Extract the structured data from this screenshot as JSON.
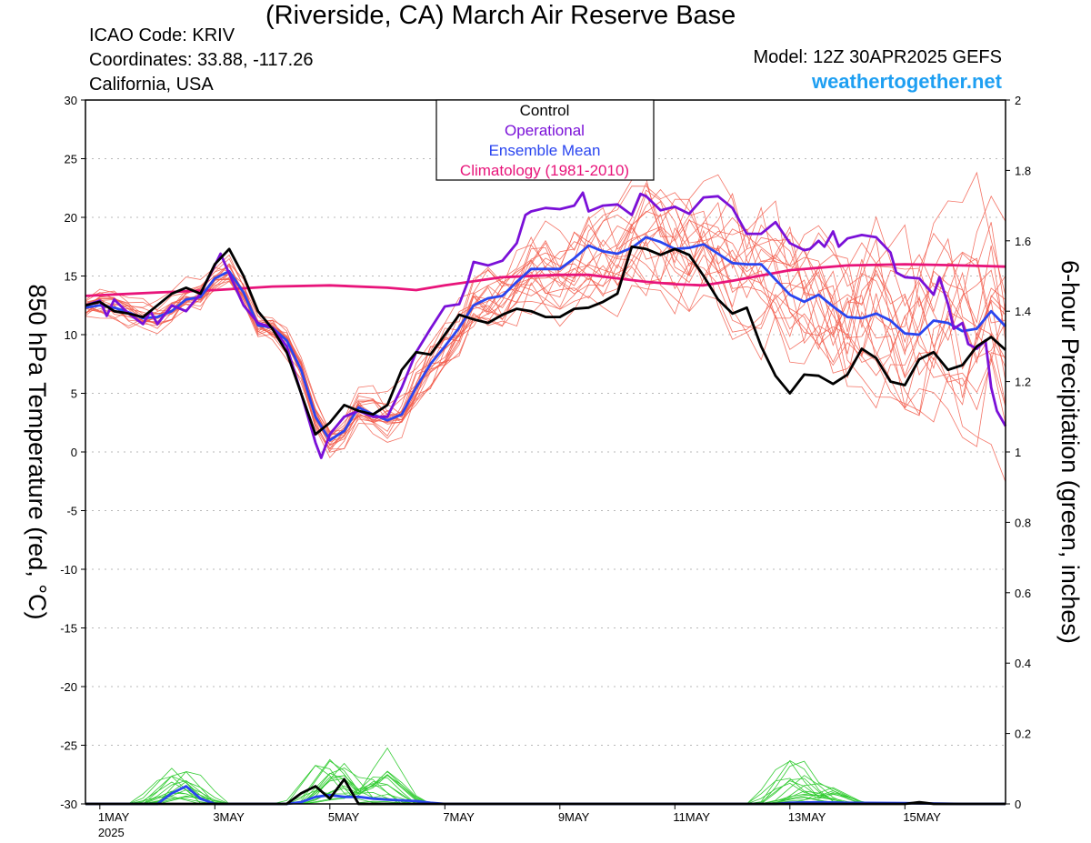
{
  "header": {
    "title": "(Riverside, CA) March Air Reserve Base",
    "icao": "ICAO Code: KRIV",
    "coords": "Coordinates: 33.88, -117.26",
    "region": "California, USA",
    "model": "Model: 12Z 30APR2025 GEFS",
    "site": "weathertogether.net"
  },
  "colors": {
    "control": "#000000",
    "operational": "#7a10d8",
    "mean": "#2a45f0",
    "climatology": "#e8147a",
    "members_temp": "#f25a4a",
    "members_precip": "#33cc33",
    "site": "#1e9ff2",
    "grid": "#b8b8b8"
  },
  "chart_data": {
    "type": "line",
    "ylabel": "850 hPa Temperature (red, °C)",
    "y2label": "6-hour Precipitation (green, inches)",
    "ylim": [
      -30,
      30
    ],
    "y2lim": [
      0,
      2
    ],
    "yticks": [
      "30",
      "25",
      "20",
      "15",
      "10",
      "5",
      "0",
      "-5",
      "-10",
      "-15",
      "-20",
      "-25",
      "-30"
    ],
    "y2ticks": [
      "2",
      "1.8",
      "1.6",
      "1.4",
      "1.2",
      "1",
      "0.8",
      "0.6",
      "0.4",
      "0.2",
      "0"
    ],
    "x_unit": "days since 1MAY2025 00Z",
    "xlim": [
      -0.25,
      15.75
    ],
    "xticks": [
      {
        "x": 0,
        "label": "1MAY"
      },
      {
        "x": 2,
        "label": "3MAY"
      },
      {
        "x": 4,
        "label": "5MAY"
      },
      {
        "x": 6,
        "label": "7MAY"
      },
      {
        "x": 8,
        "label": "9MAY"
      },
      {
        "x": 10,
        "label": "11MAY"
      },
      {
        "x": 12,
        "label": "13MAY"
      },
      {
        "x": 14,
        "label": "15MAY"
      }
    ],
    "year_label": "2025",
    "grid": true,
    "legend": {
      "position": "top-center",
      "entries": [
        {
          "label": "Control",
          "color": "#000000"
        },
        {
          "label": "Operational",
          "color": "#7a10d8"
        },
        {
          "label": "Ensemble Mean",
          "color": "#2a45f0"
        },
        {
          "label": "Climatology (1981-2010)",
          "color": "#e8147a"
        }
      ]
    },
    "series": [
      {
        "name": "Climatology (1981-2010)",
        "axis": "temp",
        "points": [
          [
            -0.25,
            13.3
          ],
          [
            1,
            13.6
          ],
          [
            2,
            13.8
          ],
          [
            3,
            14.1
          ],
          [
            4,
            14.2
          ],
          [
            5,
            14.0
          ],
          [
            5.5,
            13.8
          ],
          [
            6,
            14.2
          ],
          [
            7,
            14.9
          ],
          [
            8,
            15.1
          ],
          [
            8.5,
            15.1
          ],
          [
            9,
            14.8
          ],
          [
            9.5,
            14.5
          ],
          [
            10,
            14.3
          ],
          [
            10.5,
            14.2
          ],
          [
            11,
            14.6
          ],
          [
            12,
            15.5
          ],
          [
            13,
            15.9
          ],
          [
            14,
            16.0
          ],
          [
            15,
            15.9
          ],
          [
            15.75,
            15.8
          ]
        ]
      },
      {
        "name": "Ensemble Mean",
        "axis": "temp",
        "points": [
          [
            -0.25,
            12.3
          ],
          [
            0,
            12.5
          ],
          [
            0.25,
            12.3
          ],
          [
            0.5,
            11.9
          ],
          [
            0.75,
            11.4
          ],
          [
            1,
            11.5
          ],
          [
            1.25,
            12.0
          ],
          [
            1.5,
            13.0
          ],
          [
            1.75,
            13.2
          ],
          [
            2,
            14.8
          ],
          [
            2.25,
            15.4
          ],
          [
            2.5,
            13.6
          ],
          [
            2.75,
            10.8
          ],
          [
            3,
            10.6
          ],
          [
            3.25,
            9.5
          ],
          [
            3.5,
            7.0
          ],
          [
            3.75,
            3.0
          ],
          [
            4.0,
            1.0
          ],
          [
            4.25,
            1.8
          ],
          [
            4.5,
            3.8
          ],
          [
            4.75,
            3.2
          ],
          [
            5.0,
            2.7
          ],
          [
            5.25,
            3.2
          ],
          [
            5.5,
            5.5
          ],
          [
            5.75,
            7.5
          ],
          [
            6,
            9.0
          ],
          [
            6.25,
            10.6
          ],
          [
            6.5,
            12.5
          ],
          [
            6.75,
            13.1
          ],
          [
            7,
            13.3
          ],
          [
            7.25,
            14.5
          ],
          [
            7.5,
            15.6
          ],
          [
            7.75,
            15.6
          ],
          [
            8,
            15.6
          ],
          [
            8.25,
            16.5
          ],
          [
            8.5,
            17.6
          ],
          [
            8.75,
            17.1
          ],
          [
            9,
            16.9
          ],
          [
            9.25,
            17.4
          ],
          [
            9.5,
            18.3
          ],
          [
            9.75,
            17.9
          ],
          [
            10,
            17.3
          ],
          [
            10.25,
            17.4
          ],
          [
            10.5,
            17.7
          ],
          [
            10.75,
            16.9
          ],
          [
            11,
            16.1
          ],
          [
            11.25,
            16.0
          ],
          [
            11.5,
            16.0
          ],
          [
            11.75,
            14.7
          ],
          [
            12,
            13.4
          ],
          [
            12.25,
            12.8
          ],
          [
            12.5,
            13.4
          ],
          [
            12.75,
            12.4
          ],
          [
            13,
            11.5
          ],
          [
            13.25,
            11.4
          ],
          [
            13.5,
            11.8
          ],
          [
            13.75,
            11.2
          ],
          [
            14,
            10.1
          ],
          [
            14.25,
            10.0
          ],
          [
            14.5,
            11.2
          ],
          [
            14.75,
            11.0
          ],
          [
            15,
            10.3
          ],
          [
            15.25,
            10.5
          ],
          [
            15.5,
            12.0
          ],
          [
            15.75,
            10.7
          ]
        ]
      },
      {
        "name": "Operational",
        "axis": "temp",
        "points": [
          [
            -0.25,
            12.5
          ],
          [
            0,
            12.9
          ],
          [
            0.12,
            11.6
          ],
          [
            0.25,
            13.0
          ],
          [
            0.5,
            11.8
          ],
          [
            0.75,
            10.9
          ],
          [
            0.88,
            12.0
          ],
          [
            1,
            10.9
          ],
          [
            1.25,
            12.5
          ],
          [
            1.5,
            12.0
          ],
          [
            1.75,
            13.5
          ],
          [
            2,
            15.9
          ],
          [
            2.1,
            16.9
          ],
          [
            2.25,
            15.2
          ],
          [
            2.5,
            12.5
          ],
          [
            2.75,
            11.0
          ],
          [
            3,
            10.6
          ],
          [
            3.25,
            9.0
          ],
          [
            3.5,
            5.0
          ],
          [
            3.75,
            0.8
          ],
          [
            3.85,
            -0.5
          ],
          [
            4.0,
            1.5
          ],
          [
            4.25,
            3.0
          ],
          [
            4.5,
            3.5
          ],
          [
            4.75,
            3.0
          ],
          [
            5.0,
            3.0
          ],
          [
            5.25,
            5.5
          ],
          [
            5.5,
            8.5
          ],
          [
            5.75,
            10.5
          ],
          [
            6,
            12.4
          ],
          [
            6.25,
            12.6
          ],
          [
            6.4,
            14.5
          ],
          [
            6.5,
            16.2
          ],
          [
            6.75,
            15.9
          ],
          [
            7,
            16.3
          ],
          [
            7.25,
            17.8
          ],
          [
            7.4,
            20.2
          ],
          [
            7.5,
            20.5
          ],
          [
            7.75,
            20.8
          ],
          [
            8,
            20.7
          ],
          [
            8.25,
            21.0
          ],
          [
            8.4,
            22.1
          ],
          [
            8.5,
            20.5
          ],
          [
            8.75,
            21.0
          ],
          [
            9,
            21.1
          ],
          [
            9.25,
            20.2
          ],
          [
            9.4,
            22.0
          ],
          [
            9.5,
            21.8
          ],
          [
            9.75,
            20.6
          ],
          [
            10,
            20.9
          ],
          [
            10.25,
            20.3
          ],
          [
            10.5,
            21.7
          ],
          [
            10.75,
            21.8
          ],
          [
            11,
            20.8
          ],
          [
            11.25,
            18.6
          ],
          [
            11.5,
            18.6
          ],
          [
            11.75,
            19.6
          ],
          [
            12,
            17.8
          ],
          [
            12.25,
            17.2
          ],
          [
            12.35,
            17.3
          ],
          [
            12.5,
            18.0
          ],
          [
            12.6,
            17.5
          ],
          [
            12.75,
            18.8
          ],
          [
            12.85,
            17.5
          ],
          [
            13,
            18.2
          ],
          [
            13.25,
            18.5
          ],
          [
            13.5,
            18.3
          ],
          [
            13.75,
            17.0
          ],
          [
            13.85,
            15.3
          ],
          [
            14,
            14.9
          ],
          [
            14.25,
            14.8
          ],
          [
            14.5,
            13.4
          ],
          [
            14.6,
            14.9
          ],
          [
            14.75,
            12.6
          ],
          [
            14.85,
            10.5
          ],
          [
            15,
            11.0
          ],
          [
            15.1,
            9.2
          ],
          [
            15.25,
            8.8
          ],
          [
            15.4,
            9.5
          ],
          [
            15.5,
            5.5
          ],
          [
            15.6,
            3.5
          ],
          [
            15.75,
            2.2
          ]
        ]
      },
      {
        "name": "Control",
        "axis": "temp",
        "points": [
          [
            -0.25,
            12.5
          ],
          [
            0,
            12.8
          ],
          [
            0.25,
            12.0
          ],
          [
            0.5,
            11.8
          ],
          [
            0.75,
            11.5
          ],
          [
            1,
            12.5
          ],
          [
            1.25,
            13.5
          ],
          [
            1.5,
            14.0
          ],
          [
            1.75,
            13.5
          ],
          [
            2,
            16.0
          ],
          [
            2.25,
            17.3
          ],
          [
            2.5,
            15.0
          ],
          [
            2.75,
            12.0
          ],
          [
            3,
            10.5
          ],
          [
            3.25,
            8.5
          ],
          [
            3.5,
            5.0
          ],
          [
            3.75,
            1.5
          ],
          [
            4.0,
            2.5
          ],
          [
            4.25,
            4.0
          ],
          [
            4.5,
            3.5
          ],
          [
            4.75,
            3.2
          ],
          [
            5.0,
            4.0
          ],
          [
            5.25,
            7.0
          ],
          [
            5.5,
            8.5
          ],
          [
            5.75,
            8.3
          ],
          [
            6,
            10.0
          ],
          [
            6.25,
            11.7
          ],
          [
            6.5,
            11.3
          ],
          [
            6.75,
            11.0
          ],
          [
            7,
            11.7
          ],
          [
            7.25,
            12.2
          ],
          [
            7.5,
            12.0
          ],
          [
            7.75,
            11.5
          ],
          [
            8,
            11.5
          ],
          [
            8.25,
            12.2
          ],
          [
            8.5,
            12.3
          ],
          [
            8.75,
            12.8
          ],
          [
            9,
            13.5
          ],
          [
            9.25,
            17.5
          ],
          [
            9.5,
            17.3
          ],
          [
            9.75,
            16.8
          ],
          [
            10,
            17.3
          ],
          [
            10.25,
            16.8
          ],
          [
            10.5,
            15.0
          ],
          [
            10.75,
            13.0
          ],
          [
            11,
            11.8
          ],
          [
            11.25,
            12.3
          ],
          [
            11.5,
            9.0
          ],
          [
            11.75,
            6.5
          ],
          [
            12,
            5.0
          ],
          [
            12.25,
            6.6
          ],
          [
            12.5,
            6.5
          ],
          [
            12.75,
            5.8
          ],
          [
            13,
            6.6
          ],
          [
            13.25,
            8.8
          ],
          [
            13.5,
            8.0
          ],
          [
            13.75,
            6.0
          ],
          [
            14,
            5.7
          ],
          [
            14.25,
            7.9
          ],
          [
            14.5,
            8.5
          ],
          [
            14.75,
            7.0
          ],
          [
            15,
            7.4
          ],
          [
            15.25,
            9.0
          ],
          [
            15.5,
            9.8
          ],
          [
            15.75,
            8.7
          ]
        ]
      },
      {
        "name": "Ensemble Mean",
        "axis": "precip",
        "points": [
          [
            -0.25,
            0
          ],
          [
            1,
            0
          ],
          [
            1.25,
            0.03
          ],
          [
            1.5,
            0.05
          ],
          [
            1.75,
            0.015
          ],
          [
            2,
            0
          ],
          [
            3.25,
            0
          ],
          [
            3.5,
            0.005
          ],
          [
            3.75,
            0.02
          ],
          [
            4,
            0.025
          ],
          [
            4.25,
            0.02
          ],
          [
            4.5,
            0.02
          ],
          [
            4.75,
            0.015
          ],
          [
            5,
            0.012
          ],
          [
            5.25,
            0.01
          ],
          [
            5.5,
            0.008
          ],
          [
            5.75,
            0.003
          ],
          [
            6,
            0
          ],
          [
            11.75,
            0
          ],
          [
            12,
            0.003
          ],
          [
            12.5,
            0.005
          ],
          [
            13,
            0.003
          ],
          [
            14,
            0.002
          ],
          [
            15,
            0
          ],
          [
            15.75,
            0
          ]
        ]
      },
      {
        "name": "Control",
        "axis": "precip",
        "points": [
          [
            -0.25,
            0
          ],
          [
            3.25,
            0
          ],
          [
            3.5,
            0.03
          ],
          [
            3.75,
            0.05
          ],
          [
            4,
            0.015
          ],
          [
            4.25,
            0.07
          ],
          [
            4.5,
            0
          ],
          [
            5,
            0
          ],
          [
            14,
            0
          ],
          [
            14.25,
            0.005
          ],
          [
            14.5,
            0
          ],
          [
            15.75,
            0
          ]
        ]
      }
    ]
  }
}
